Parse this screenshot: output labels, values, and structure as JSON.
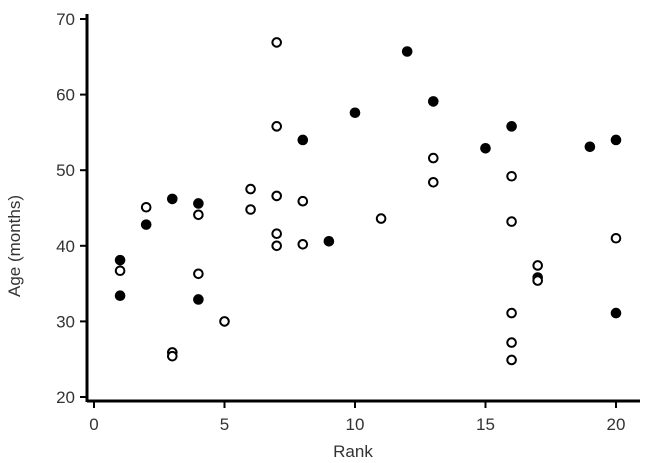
{
  "chart_data": {
    "type": "scatter",
    "title": "",
    "xlabel": "Rank",
    "ylabel": "Age (months)",
    "xlim": [
      -0.5,
      21
    ],
    "ylim": [
      20,
      70
    ],
    "xticks": [
      0,
      5,
      10,
      15,
      20
    ],
    "yticks": [
      20,
      30,
      40,
      50,
      60,
      70
    ],
    "grid": false,
    "legend": "none",
    "colors": {
      "axis": "#000000",
      "filled": "#000000",
      "hollow_fill": "#ffffff",
      "text": "#333333"
    },
    "series": [
      {
        "marker": "filled-circle",
        "points": [
          [
            1,
            38.1
          ],
          [
            1,
            33.4
          ],
          [
            2,
            42.8
          ],
          [
            3,
            46.2
          ],
          [
            4,
            45.6
          ],
          [
            4,
            32.9
          ],
          [
            8,
            54.0
          ],
          [
            9,
            40.6
          ],
          [
            10,
            57.6
          ],
          [
            12,
            65.7
          ],
          [
            13,
            59.1
          ],
          [
            15,
            52.9
          ],
          [
            16,
            55.8
          ],
          [
            17,
            35.8
          ],
          [
            19,
            53.1
          ],
          [
            20,
            54.0
          ],
          [
            20,
            31.1
          ]
        ]
      },
      {
        "marker": "hollow-circle",
        "points": [
          [
            1,
            36.7
          ],
          [
            2,
            45.1
          ],
          [
            3,
            25.9
          ],
          [
            3,
            25.4
          ],
          [
            4,
            44.1
          ],
          [
            4,
            36.3
          ],
          [
            5,
            30.0
          ],
          [
            6,
            47.5
          ],
          [
            6,
            44.8
          ],
          [
            7,
            66.9
          ],
          [
            7,
            55.8
          ],
          [
            7,
            46.6
          ],
          [
            7,
            41.6
          ],
          [
            7,
            40.0
          ],
          [
            8,
            45.9
          ],
          [
            8,
            40.2
          ],
          [
            11,
            43.6
          ],
          [
            13,
            51.6
          ],
          [
            13,
            48.4
          ],
          [
            16,
            49.2
          ],
          [
            16,
            43.2
          ],
          [
            16,
            31.1
          ],
          [
            16,
            27.2
          ],
          [
            16,
            24.9
          ],
          [
            17,
            37.4
          ],
          [
            17,
            35.4
          ],
          [
            20,
            41.0
          ]
        ]
      }
    ]
  }
}
